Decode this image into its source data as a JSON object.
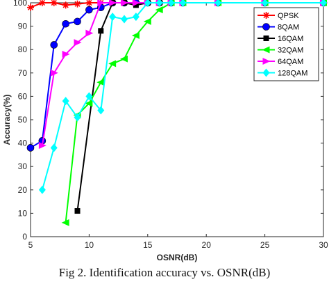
{
  "caption": "Fig 2. Identification accuracy vs. OSNR(dB)",
  "chart_data": {
    "type": "line",
    "title": "",
    "xlabel": "OSNR(dB)",
    "ylabel": "Accuracy(%)",
    "xlim": [
      5,
      30
    ],
    "ylim": [
      0,
      100
    ],
    "xticks": [
      "5",
      "10",
      "15",
      "20",
      "25",
      "30"
    ],
    "yticks": [
      "0",
      "10",
      "20",
      "30",
      "40",
      "50",
      "60",
      "70",
      "80",
      "90",
      "100"
    ],
    "grid": false,
    "legend": "top-right",
    "series": [
      {
        "name": "QPSK",
        "color": "#ff0000",
        "marker": "star",
        "x": [
          5,
          6,
          7,
          8,
          9,
          10,
          11,
          12,
          13,
          14,
          15,
          16,
          17,
          18,
          21,
          25,
          30
        ],
        "y": [
          98,
          100,
          100,
          99,
          99.5,
          100,
          100,
          100,
          100,
          100,
          100,
          100,
          100,
          100,
          100,
          100,
          100
        ]
      },
      {
        "name": "8QAM",
        "color": "#0000ff",
        "marker": "circle",
        "x": [
          5,
          6,
          7,
          8,
          9,
          10,
          11,
          12,
          13,
          14,
          15,
          16,
          17,
          18,
          21,
          25,
          30
        ],
        "y": [
          38,
          41,
          82,
          91,
          92,
          97,
          98,
          100,
          100,
          100,
          100,
          100,
          100,
          100,
          100,
          100,
          100
        ]
      },
      {
        "name": "16QAM",
        "color": "#000000",
        "marker": "square",
        "x": [
          9,
          11,
          12,
          13,
          14,
          15,
          16,
          17,
          18,
          21,
          25,
          30
        ],
        "y": [
          11,
          88,
          100,
          100,
          99,
          100,
          100,
          100,
          100,
          100,
          100,
          100
        ]
      },
      {
        "name": "32QAM",
        "color": "#00ff00",
        "marker": "triangle-left",
        "x": [
          8,
          9,
          10,
          11,
          12,
          13,
          14,
          15,
          16,
          17,
          18,
          21,
          25,
          30
        ],
        "y": [
          6,
          52,
          57,
          66,
          74,
          76,
          86,
          92,
          97,
          100,
          100,
          100,
          100,
          100
        ]
      },
      {
        "name": "64QAM",
        "color": "#ff00ff",
        "marker": "triangle-right",
        "x": [
          6,
          7,
          8,
          9,
          10,
          11,
          12,
          13,
          14,
          15,
          16,
          17,
          18,
          21,
          25,
          30
        ],
        "y": [
          39,
          70,
          78,
          83,
          87,
          100,
          100,
          100,
          100,
          100,
          100,
          100,
          100,
          100,
          100,
          100
        ]
      },
      {
        "name": "128QAM",
        "color": "#00ffff",
        "marker": "diamond",
        "x": [
          6,
          7,
          8,
          9,
          10,
          11,
          12,
          13,
          14,
          15,
          16,
          17,
          18,
          21,
          25,
          30
        ],
        "y": [
          20,
          38,
          58,
          51,
          60,
          54,
          94,
          93,
          94,
          100,
          100,
          100,
          100,
          100,
          100,
          100
        ]
      }
    ]
  }
}
